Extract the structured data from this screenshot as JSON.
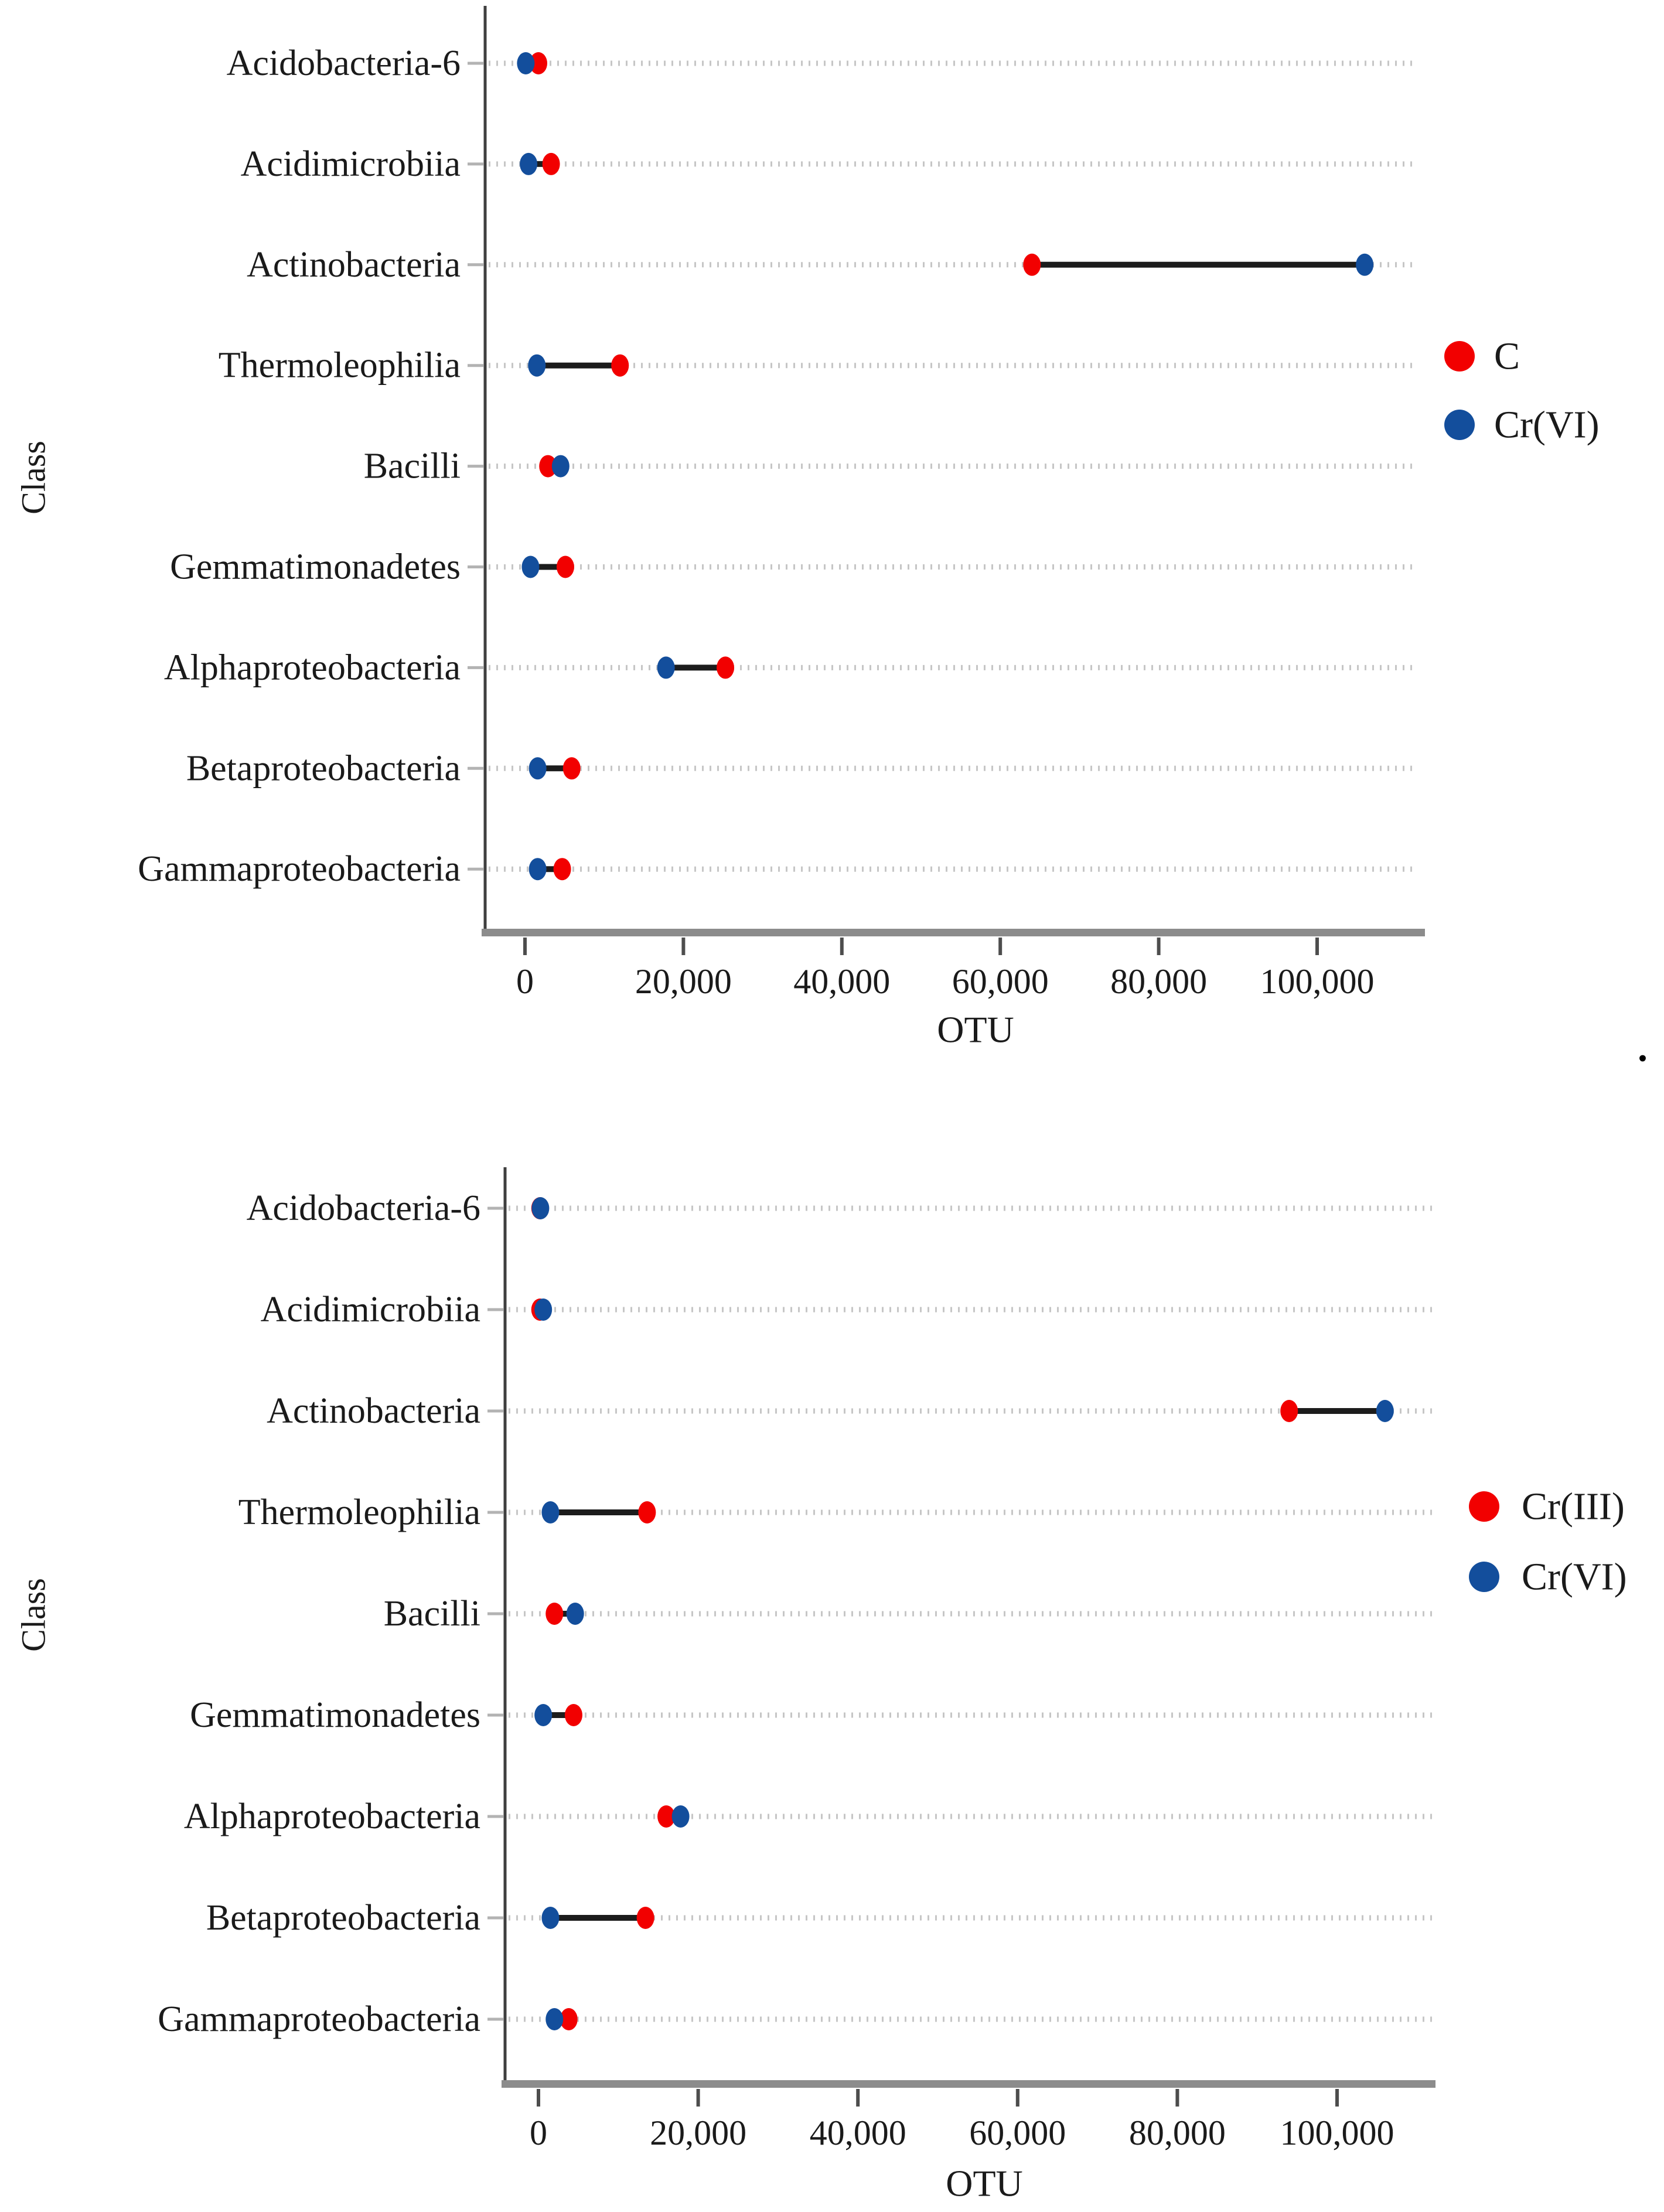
{
  "page": {
    "stray_period": "."
  },
  "colors": {
    "red": "#f20000",
    "blue": "#134e9c",
    "grid": "#c6c6c6",
    "axis_vertical": "#3f3f3f",
    "axis_horizontal": "#8c8c8c",
    "x_tick": "#4d4d4d",
    "y_tick": "#b3b3b3",
    "connector": "#1c1c1c",
    "text": "#1a1a1a"
  },
  "chart_data": [
    {
      "type": "scatter",
      "variant": "dumbbell",
      "title": "",
      "xlabel": "OTU",
      "ylabel": "Class",
      "grid": true,
      "legend_position": "right",
      "xlim": [
        0,
        112000
      ],
      "xticks": [
        0,
        20000,
        40000,
        60000,
        80000,
        100000
      ],
      "xtick_labels": [
        "0",
        "20,000",
        "40,000",
        "60,000",
        "80,000",
        "100,000"
      ],
      "categories": [
        "Acidobacteria-6",
        "Acidimicrobiia",
        "Actinobacteria",
        "Thermoleophilia",
        "Bacilli",
        "Gemmatimonadetes",
        "Alphaproteobacteria",
        "Betaproteobacteria",
        "Gammaproteobacteria"
      ],
      "series": [
        {
          "name": "C",
          "color_key": "red",
          "values": [
            1700,
            3300,
            64000,
            12000,
            2900,
            5100,
            25300,
            5900,
            4700
          ]
        },
        {
          "name": "Cr(VI)",
          "color_key": "blue",
          "values": [
            100,
            450,
            106000,
            1500,
            4500,
            700,
            17800,
            1600,
            1600
          ]
        }
      ],
      "legend": [
        {
          "label": "C",
          "color_key": "red"
        },
        {
          "label": "Cr(VI)",
          "color_key": "blue"
        }
      ]
    },
    {
      "type": "scatter",
      "variant": "dumbbell",
      "title": "",
      "xlabel": "OTU",
      "ylabel": "Class",
      "grid": true,
      "legend_position": "right",
      "xlim": [
        0,
        112000
      ],
      "xticks": [
        0,
        20000,
        40000,
        60000,
        80000,
        100000
      ],
      "xtick_labels": [
        "0",
        "20,000",
        "40,000",
        "60,000",
        "80,000",
        "100,000"
      ],
      "categories": [
        "Acidobacteria-6",
        "Acidimicrobiia",
        "Actinobacteria",
        "Thermoleophilia",
        "Bacilli",
        "Gemmatimonadetes",
        "Alphaproteobacteria",
        "Betaproteobacteria",
        "Gammaproteobacteria"
      ],
      "series": [
        {
          "name": "Cr(III)",
          "color_key": "red",
          "values": [
            200,
            200,
            94000,
            13600,
            2000,
            4400,
            16000,
            13400,
            3800
          ]
        },
        {
          "name": "Cr(VI)",
          "color_key": "blue",
          "values": [
            250,
            600,
            106000,
            1500,
            4600,
            600,
            17800,
            1500,
            2000
          ]
        }
      ],
      "legend": [
        {
          "label": "Cr(III)",
          "color_key": "red"
        },
        {
          "label": "Cr(VI)",
          "color_key": "blue"
        }
      ]
    }
  ]
}
